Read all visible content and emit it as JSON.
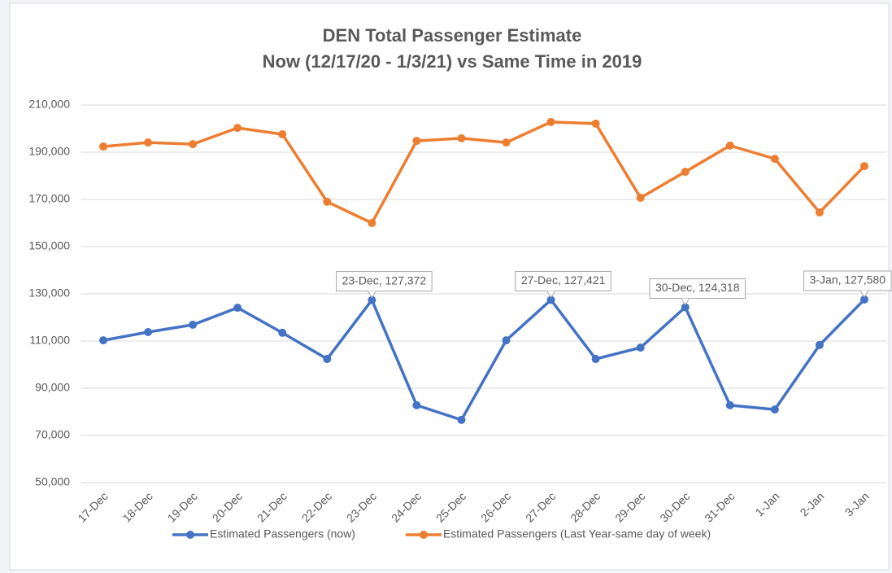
{
  "chart_data": {
    "type": "line",
    "title": "DEN Total Passenger Estimate",
    "subtitle": "Now (12/17/20 - 1/3/21) vs Same Time in 2019",
    "categories": [
      "17-Dec",
      "18-Dec",
      "19-Dec",
      "20-Dec",
      "21-Dec",
      "22-Dec",
      "23-Dec",
      "24-Dec",
      "25-Dec",
      "26-Dec",
      "27-Dec",
      "28-Dec",
      "29-Dec",
      "30-Dec",
      "31-Dec",
      "1-Jan",
      "2-Jan",
      "3-Jan"
    ],
    "series": [
      {
        "name": "Estimated Passengers (now)",
        "color": "#4472c4",
        "values": [
          110300,
          113800,
          116900,
          124100,
          113500,
          102400,
          127372,
          82800,
          76600,
          110300,
          127421,
          102400,
          107200,
          124318,
          82800,
          81000,
          108300,
          127580
        ],
        "value_labels": [
          null,
          null,
          null,
          null,
          null,
          null,
          "23-Dec, 127,372",
          null,
          null,
          null,
          "27-Dec, 127,421",
          null,
          null,
          "30-Dec, 124,318",
          null,
          null,
          null,
          "3-Jan, 127,580"
        ]
      },
      {
        "name": "Estimated Passengers (Last Year-same day of week)",
        "color": "#ed7d31",
        "values": [
          192400,
          194100,
          193400,
          200300,
          197600,
          169000,
          160000,
          194800,
          195900,
          194100,
          202800,
          202100,
          170700,
          181700,
          192800,
          187200,
          164500,
          184100
        ]
      }
    ],
    "ylim": [
      50000,
      210000
    ],
    "yticks": [
      {
        "value": 50000,
        "label": "50,000"
      },
      {
        "value": 70000,
        "label": "70,000"
      },
      {
        "value": 90000,
        "label": "90,000"
      },
      {
        "value": 110000,
        "label": "110,000"
      },
      {
        "value": 130000,
        "label": "130,000"
      },
      {
        "value": 150000,
        "label": "150,000"
      },
      {
        "value": 170000,
        "label": "170,000"
      },
      {
        "value": 190000,
        "label": "190,000"
      },
      {
        "value": 210000,
        "label": "210,000"
      }
    ],
    "grid": true,
    "legend": "bottom"
  }
}
